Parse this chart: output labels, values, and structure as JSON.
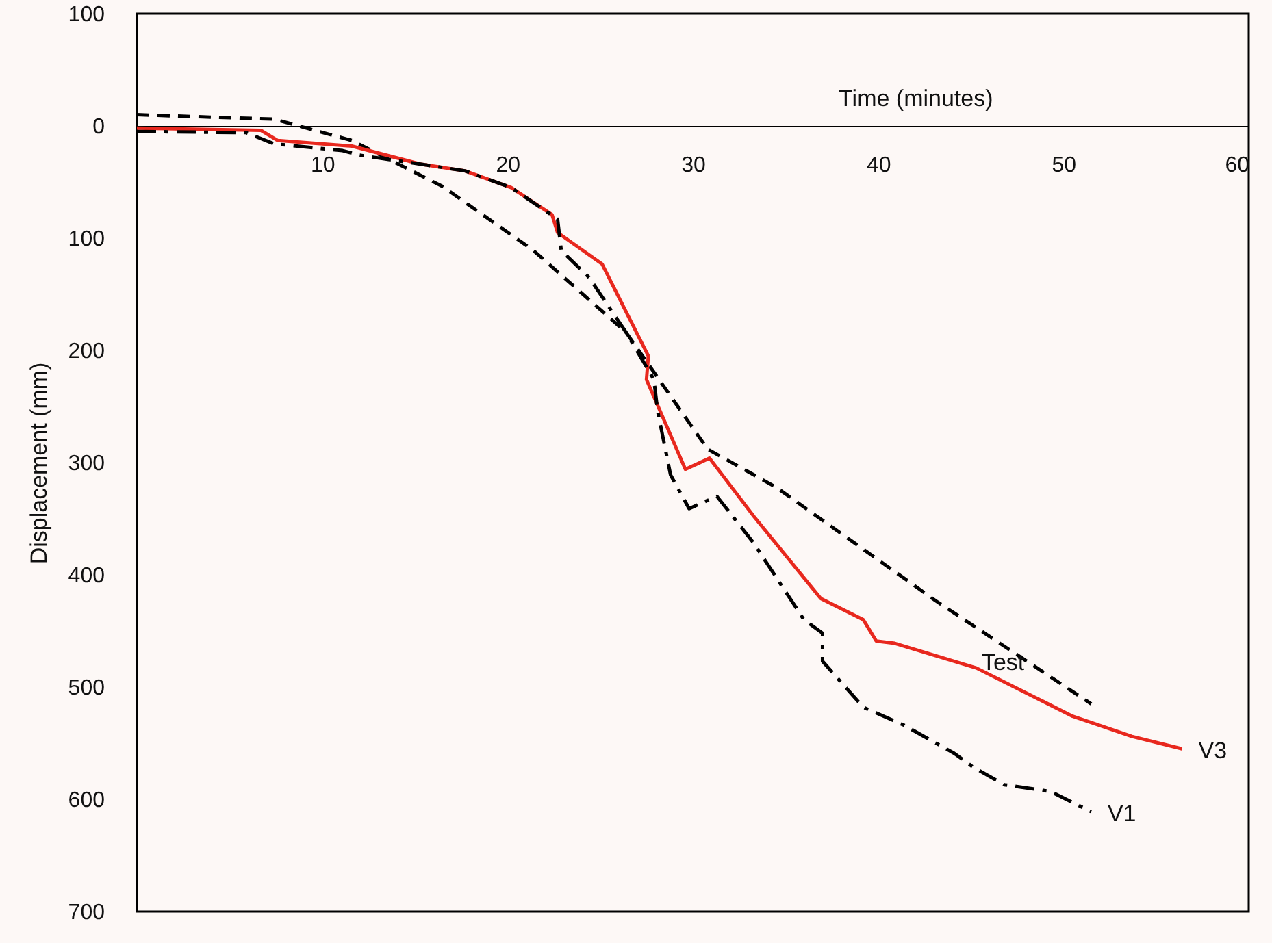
{
  "chart_data": {
    "type": "line",
    "xlabel": "Time (minutes)",
    "ylabel": "Displacement (mm)",
    "xlim": [
      0,
      60
    ],
    "xticks": [
      10,
      20,
      30,
      40,
      50,
      60
    ],
    "ylim": [
      700,
      -100
    ],
    "yticks": [
      {
        "value": -100,
        "label": "100"
      },
      0,
      100,
      200,
      300,
      400,
      500,
      600,
      700
    ],
    "marker": "none",
    "series": [
      {
        "name": "Test",
        "color": "#000000",
        "line_style": "dashed",
        "x": [
          0,
          7.4,
          11.6,
          16.5,
          21.4,
          26.4,
          30.8,
          34.5,
          43.1,
          51.5
        ],
        "values": [
          -10,
          -6,
          13,
          54,
          111,
          184,
          288,
          322,
          423,
          515
        ]
      },
      {
        "name": "V3",
        "color": "#e8281e",
        "line_style": "solid",
        "x": [
          0,
          6.7,
          7.6,
          11.6,
          15.3,
          17.7,
          20.2,
          22.4,
          22.7,
          25.1,
          27.6,
          27.5,
          29.6,
          30.9,
          33.3,
          36.9,
          39.2,
          39.9,
          40.9,
          45.3,
          50.5,
          53.7,
          56.4
        ],
        "values": [
          2,
          4,
          13,
          18,
          34,
          40,
          55,
          79,
          95,
          123,
          205,
          226,
          306,
          296,
          348,
          421,
          440,
          459,
          461,
          483,
          526,
          544,
          555
        ]
      },
      {
        "name": "V1",
        "color": "#000000",
        "line_style": "dashdot",
        "x": [
          0,
          5.9,
          7.4,
          11.1,
          12.0,
          15.3,
          17.7,
          20.2,
          22.7,
          22.9,
          24.4,
          26.4,
          27.9,
          28.1,
          28.8,
          29.8,
          31.3,
          33.3,
          36.0,
          37.0,
          37.0,
          39.2,
          41.4,
          44.1,
          45.1,
          46.8,
          49.3,
          51.5
        ],
        "values": [
          5,
          6,
          16,
          22,
          26,
          34,
          40,
          55,
          83,
          111,
          135,
          184,
          226,
          254,
          311,
          341,
          330,
          372,
          440,
          452,
          477,
          518,
          534,
          559,
          571,
          587,
          593,
          611
        ]
      }
    ]
  }
}
